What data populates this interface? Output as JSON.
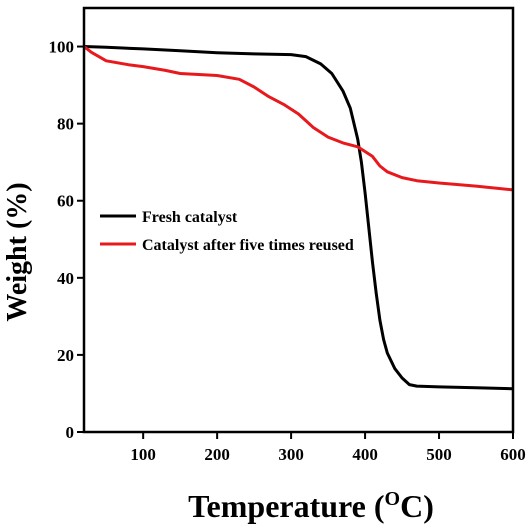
{
  "chart_data": {
    "type": "line",
    "xlabel": "Temperature (",
    "xlabel_sup": "O",
    "xlabel_end": "C)",
    "ylabel": "Weight (%)",
    "xlim": [
      20,
      600
    ],
    "ylim": [
      0,
      110
    ],
    "x_ticks": [
      100,
      200,
      300,
      400,
      500,
      600
    ],
    "y_ticks": [
      0,
      20,
      40,
      60,
      80,
      100
    ],
    "grid": false,
    "legend_position": "center-left",
    "colors": {
      "Fresh catalyst": "#000000",
      "Catalyst after five times reused": "#e8191c"
    },
    "series": [
      {
        "name": "Fresh catalyst",
        "x": [
          20,
          50,
          100,
          150,
          200,
          250,
          300,
          320,
          340,
          355,
          370,
          380,
          390,
          395,
          400,
          405,
          410,
          415,
          420,
          425,
          430,
          440,
          450,
          460,
          470,
          500,
          550,
          600
        ],
        "y": [
          100,
          99.8,
          99.4,
          98.9,
          98.4,
          98.1,
          97.9,
          97.4,
          95.5,
          93,
          88.5,
          84,
          76,
          70,
          62,
          53,
          44,
          36,
          29,
          24,
          20.5,
          16.5,
          14,
          12.3,
          11.9,
          11.7,
          11.5,
          11.2
        ]
      },
      {
        "name": "Catalyst after five times reused",
        "x": [
          20,
          30,
          50,
          80,
          100,
          130,
          150,
          200,
          230,
          250,
          270,
          290,
          310,
          330,
          350,
          370,
          390,
          410,
          420,
          430,
          450,
          470,
          500,
          550,
          600
        ],
        "y": [
          100,
          98.5,
          96.3,
          95.3,
          94.8,
          93.8,
          93,
          92.5,
          91.5,
          89.5,
          87,
          85,
          82.5,
          79,
          76.5,
          75,
          74,
          71.5,
          69,
          67.5,
          66,
          65.2,
          64.6,
          63.8,
          62.8
        ]
      }
    ]
  }
}
